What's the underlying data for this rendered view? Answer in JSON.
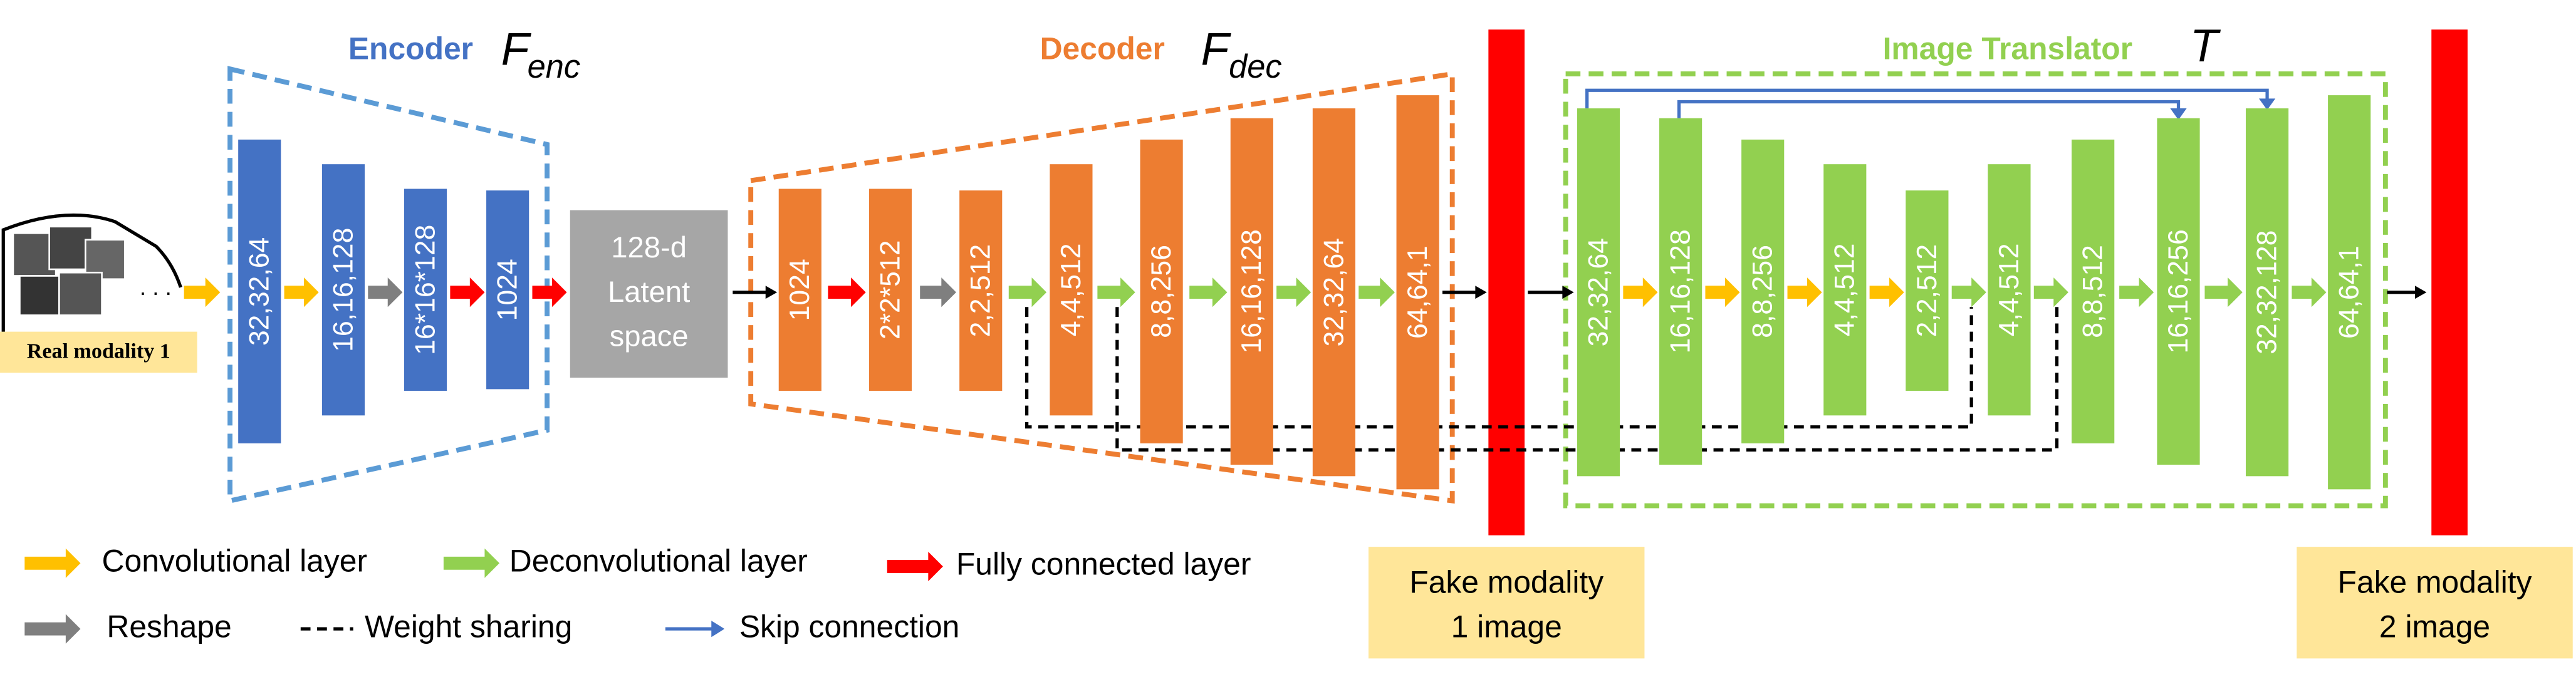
{
  "encoder": {
    "title": "Encoder",
    "symbol": "F",
    "subscript": "enc",
    "layers": [
      "32,32,64",
      "16,16,128",
      "16*16*128",
      "1024"
    ]
  },
  "latent": {
    "lines": [
      "128-d",
      "Latent",
      "space"
    ]
  },
  "decoder": {
    "title": "Decoder",
    "symbol": "F",
    "subscript": "dec",
    "layers": [
      "1024",
      "2*2*512",
      "2,2,512",
      "4,4,512",
      "8,8,256",
      "16,16,128",
      "32,32,64",
      "64,64,1"
    ]
  },
  "translator": {
    "title": "Image Translator",
    "symbol": "T",
    "layers": [
      "32,32,64",
      "16,16,128",
      "8,8,256",
      "4,4,512",
      "2,2,512",
      "4,4,512",
      "8,8,512",
      "16,16,256",
      "32,32,128",
      "64,64,1"
    ]
  },
  "input": {
    "label": "Real modality 1",
    "ellipsis": ". . ."
  },
  "outputs": [
    {
      "lines": [
        "Fake modality",
        "1 image"
      ]
    },
    {
      "lines": [
        "Fake modality",
        "2 image"
      ]
    }
  ],
  "legend": [
    {
      "label": "Convolutional layer"
    },
    {
      "label": "Deconvolutional layer"
    },
    {
      "label": "Fully connected layer"
    },
    {
      "label": "Reshape"
    },
    {
      "label": "Weight sharing"
    },
    {
      "label": "Skip connection"
    }
  ]
}
